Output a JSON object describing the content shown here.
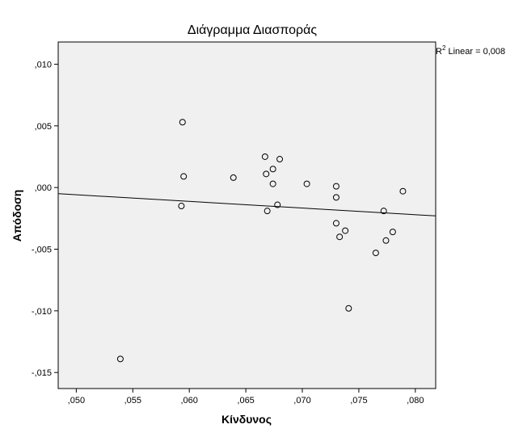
{
  "chart_data": {
    "type": "scatter",
    "title": "Διάγραμμα Διασποράς",
    "xlabel": "Κίνδυνος",
    "ylabel": "Απόδοση",
    "xlim": [
      0.0484,
      0.0818
    ],
    "ylim": [
      -0.0163,
      0.0118
    ],
    "x_ticks": [
      {
        "value": 0.05,
        "label": ",050"
      },
      {
        "value": 0.055,
        "label": ",055"
      },
      {
        "value": 0.06,
        "label": ",060"
      },
      {
        "value": 0.065,
        "label": ",065"
      },
      {
        "value": 0.07,
        "label": ",070"
      },
      {
        "value": 0.075,
        "label": ",075"
      },
      {
        "value": 0.08,
        "label": ",080"
      }
    ],
    "y_ticks": [
      {
        "value": 0.01,
        "label": ",010"
      },
      {
        "value": 0.005,
        "label": ",005"
      },
      {
        "value": 0.0,
        "label": ",000"
      },
      {
        "value": -0.005,
        "label": "-,005"
      },
      {
        "value": -0.01,
        "label": "-,010"
      },
      {
        "value": -0.015,
        "label": "-,015"
      }
    ],
    "points": [
      {
        "x": 0.0539,
        "y": -0.0139
      },
      {
        "x": 0.0593,
        "y": -0.0015
      },
      {
        "x": 0.0594,
        "y": 0.0053
      },
      {
        "x": 0.0595,
        "y": 0.0009
      },
      {
        "x": 0.0639,
        "y": 0.0008
      },
      {
        "x": 0.0667,
        "y": 0.0025
      },
      {
        "x": 0.0668,
        "y": 0.0011
      },
      {
        "x": 0.0669,
        "y": -0.0019
      },
      {
        "x": 0.0674,
        "y": 0.0015
      },
      {
        "x": 0.0674,
        "y": 0.0003
      },
      {
        "x": 0.0678,
        "y": -0.0014
      },
      {
        "x": 0.068,
        "y": 0.0023
      },
      {
        "x": 0.0704,
        "y": 0.0003
      },
      {
        "x": 0.073,
        "y": 0.0001
      },
      {
        "x": 0.073,
        "y": -0.0008
      },
      {
        "x": 0.073,
        "y": -0.0029
      },
      {
        "x": 0.0733,
        "y": -0.004
      },
      {
        "x": 0.0738,
        "y": -0.0035
      },
      {
        "x": 0.0741,
        "y": -0.0098
      },
      {
        "x": 0.0765,
        "y": -0.0053
      },
      {
        "x": 0.0772,
        "y": -0.0019
      },
      {
        "x": 0.0774,
        "y": -0.0043
      },
      {
        "x": 0.078,
        "y": -0.0036
      },
      {
        "x": 0.0789,
        "y": -0.0003
      }
    ],
    "fit_line": {
      "x": [
        0.0484,
        0.0818
      ],
      "y": [
        -0.0005,
        -0.0023
      ]
    },
    "r2_prefix": "R",
    "r2_superscript": "2",
    "r2_suffix": " Linear = 0,008",
    "grid": false,
    "background_color": "#f0f0f0",
    "marker": "hollow-circle"
  }
}
